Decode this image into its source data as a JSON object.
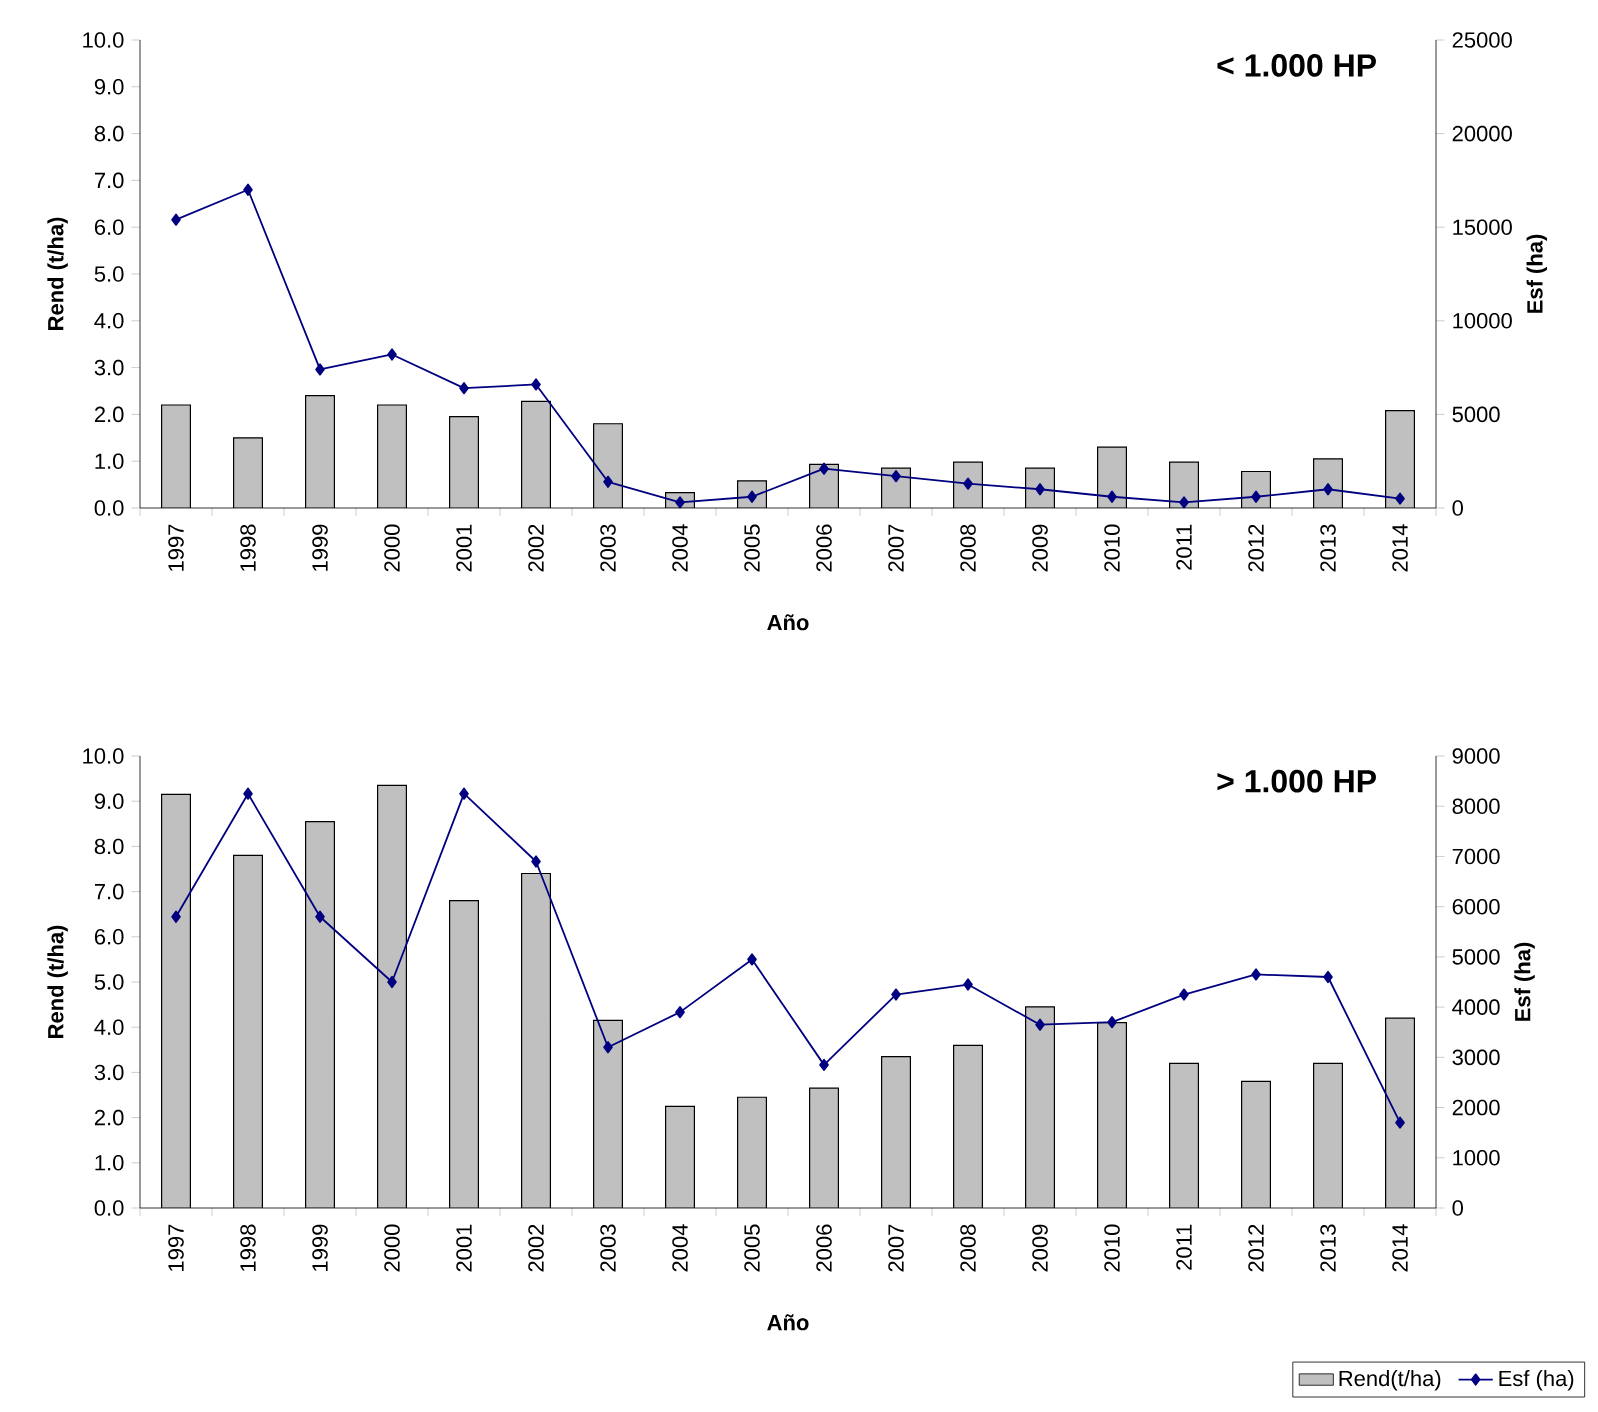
{
  "chart_data": [
    {
      "type": "bar",
      "title": "< 1.000 HP",
      "xlabel": "Año",
      "ylabel": "Rend (t/ha)",
      "y2label": "Esf (ha)",
      "categories": [
        "1997",
        "1998",
        "1999",
        "2000",
        "2001",
        "2002",
        "2003",
        "2004",
        "2005",
        "2006",
        "2007",
        "2008",
        "2009",
        "2010",
        "2011",
        "2012",
        "2013",
        "2014"
      ],
      "series": [
        {
          "color": "#c0c0c0",
          "values": [
            2.2,
            1.5,
            2.4,
            2.2,
            1.95,
            2.28,
            1.8,
            0.33,
            0.58,
            0.93,
            0.85,
            0.98,
            0.85,
            1.3,
            0.98,
            0.78,
            1.05,
            2.08
          ]
        },
        {
          "type": "line",
          "axis": "y2",
          "color": "#000080",
          "marker": "diamond",
          "values": [
            15400,
            17000,
            7400,
            8200,
            6400,
            6600,
            1400,
            300,
            600,
            2100,
            1700,
            1300,
            1000,
            600,
            300,
            600,
            1000,
            500
          ]
        }
      ],
      "ylim": [
        0,
        10
      ],
      "yticks": [
        {
          "value": 0,
          "label": "0.0"
        },
        {
          "value": 1,
          "label": "1.0"
        },
        {
          "value": 2,
          "label": "2.0"
        },
        {
          "value": 3,
          "label": "3.0"
        },
        {
          "value": 4,
          "label": "4.0"
        },
        {
          "value": 5,
          "label": "5.0"
        },
        {
          "value": 6,
          "label": "6.0"
        },
        {
          "value": 7,
          "label": "7.0"
        },
        {
          "value": 8,
          "label": "8.0"
        },
        {
          "value": 9,
          "label": "9.0"
        },
        {
          "value": 10,
          "label": "10.0"
        }
      ],
      "y2lim": [
        0,
        25000
      ],
      "y2ticks": [
        0,
        5000,
        10000,
        15000,
        20000,
        25000
      ],
      "grid": false,
      "legend": false
    },
    {
      "type": "bar",
      "title": "> 1.000 HP",
      "xlabel": "Año",
      "ylabel": "Rend (t/ha)",
      "y2label": "Esf (ha)",
      "categories": [
        "1997",
        "1998",
        "1999",
        "2000",
        "2001",
        "2002",
        "2003",
        "2004",
        "2005",
        "2006",
        "2007",
        "2008",
        "2009",
        "2010",
        "2011",
        "2012",
        "2013",
        "2014"
      ],
      "series": [
        {
          "name": "Rend(t/ha)",
          "color": "#c0c0c0",
          "values": [
            9.15,
            7.8,
            8.55,
            9.35,
            6.8,
            7.4,
            4.15,
            2.25,
            2.45,
            2.65,
            3.35,
            3.6,
            4.45,
            4.1,
            3.2,
            2.8,
            3.2,
            4.2
          ]
        },
        {
          "name": "Esf (ha)",
          "type": "line",
          "axis": "y2",
          "color": "#000080",
          "marker": "diamond",
          "values": [
            5800,
            8250,
            5800,
            4500,
            8250,
            6900,
            3200,
            3900,
            4950,
            2850,
            4250,
            4450,
            3650,
            3700,
            4250,
            4650,
            4600,
            1700
          ]
        }
      ],
      "ylim": [
        0,
        10
      ],
      "yticks": [
        {
          "value": 0,
          "label": "0.0"
        },
        {
          "value": 1,
          "label": "1.0"
        },
        {
          "value": 2,
          "label": "2.0"
        },
        {
          "value": 3,
          "label": "3.0"
        },
        {
          "value": 4,
          "label": "4.0"
        },
        {
          "value": 5,
          "label": "5.0"
        },
        {
          "value": 6,
          "label": "6.0"
        },
        {
          "value": 7,
          "label": "7.0"
        },
        {
          "value": 8,
          "label": "8.0"
        },
        {
          "value": 9,
          "label": "9.0"
        },
        {
          "value": 10,
          "label": "10.0"
        }
      ],
      "y2lim": [
        0,
        9000
      ],
      "y2ticks": [
        0,
        1000,
        2000,
        3000,
        4000,
        5000,
        6000,
        7000,
        8000,
        9000
      ],
      "grid": false,
      "legend": "bottom right"
    }
  ]
}
